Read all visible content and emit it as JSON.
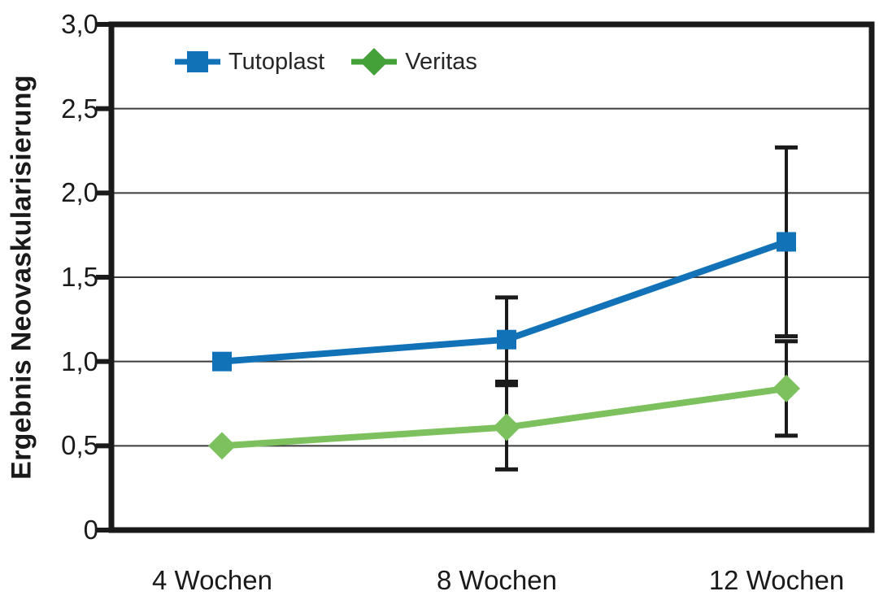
{
  "chart_data": {
    "type": "line",
    "title": "",
    "ylabel": "Ergebnis Neovaskularisierung",
    "xlabel": "",
    "categories": [
      "4 Wochen",
      "8 Wochen",
      "12 Wochen"
    ],
    "series": [
      {
        "name": "Tutoplast",
        "marker": "square",
        "color": "#1272b8",
        "legend_color": "#1272b8",
        "values": [
          1.0,
          1.13,
          1.71
        ],
        "error": [
          0,
          0.25,
          0.56
        ]
      },
      {
        "name": "Veritas",
        "marker": "diamond",
        "color": "#7cc15e",
        "legend_color": "#44a038",
        "values": [
          0.5,
          0.61,
          0.84
        ],
        "error": [
          0,
          0.25,
          0.28
        ]
      }
    ],
    "ylim": [
      0,
      3
    ],
    "ytick_step": 0.5,
    "yticks": [
      "0",
      "0,5",
      "1,0",
      "1,5",
      "2,0",
      "2,5",
      "3,0"
    ],
    "grid": "horizontal",
    "error_bars": true,
    "legend_position": "top-left-inside"
  },
  "styles": {
    "axis_color": "#1a1a1a",
    "grid_color": "#3c3c3c",
    "text_color": "#1a1a1a",
    "background": "#ffffff"
  }
}
